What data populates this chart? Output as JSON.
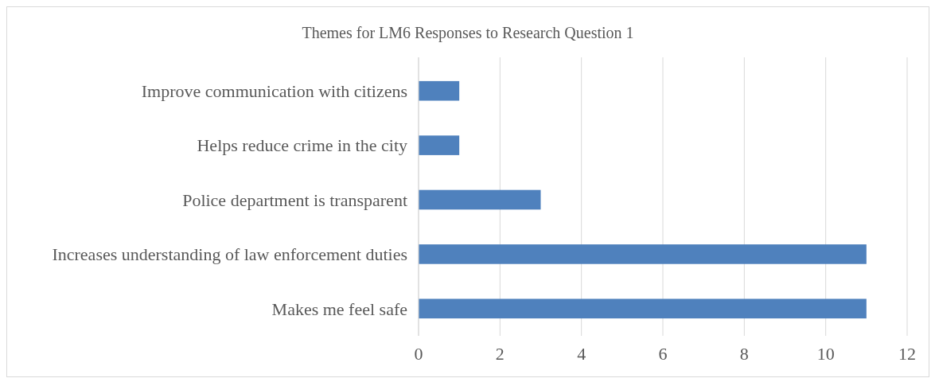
{
  "chart_data": {
    "type": "bar",
    "orientation": "horizontal",
    "title": "Themes for LM6 Responses to Research Question 1",
    "categories": [
      "Improve communication with citizens",
      "Helps reduce crime in the city",
      "Police department is transparent",
      "Increases understanding of law enforcement duties",
      "Makes me feel safe"
    ],
    "values": [
      1,
      1,
      3,
      11,
      11
    ],
    "color": "#4f81bd",
    "xlim": [
      0,
      12
    ],
    "xticks": [
      0,
      2,
      4,
      6,
      8,
      10,
      12
    ],
    "grid": "x"
  }
}
